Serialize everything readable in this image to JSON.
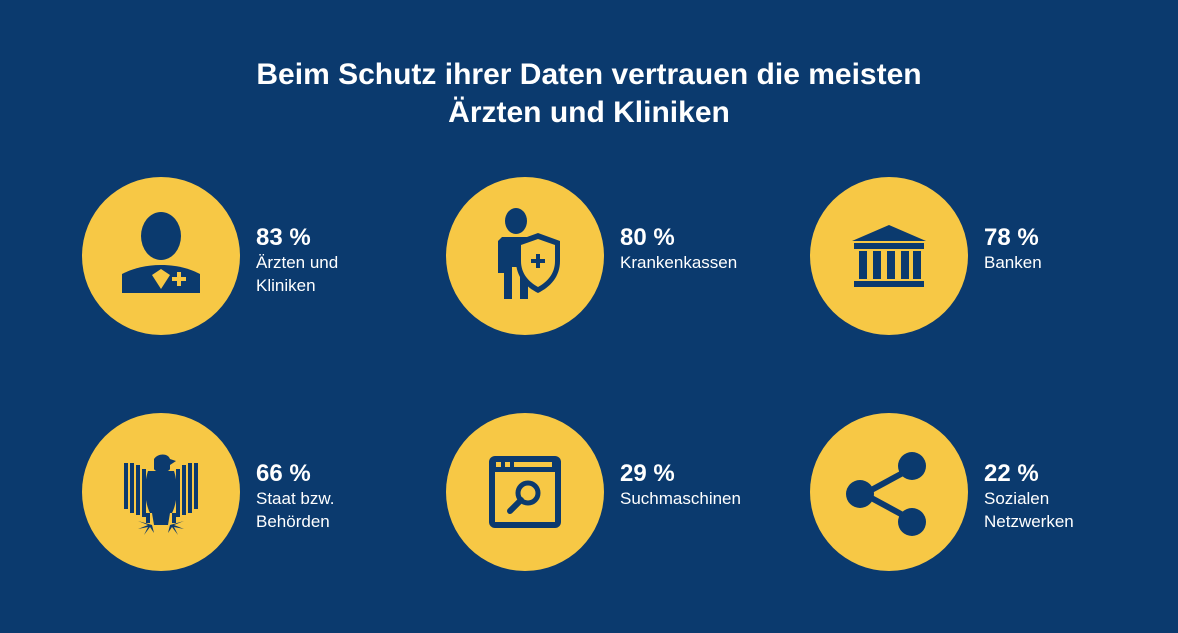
{
  "header": {
    "title_line1": "Beim Schutz ihrer Daten vertrauen die meisten",
    "title_line2": "Ärzten und Kliniken"
  },
  "colors": {
    "background": "#0b3a6e",
    "circle": "#f7c845",
    "icon": "#0b3a6e",
    "text": "#ffffff"
  },
  "chart_data": {
    "type": "table",
    "title": "Beim Schutz ihrer Daten vertrauen die meisten Ärzten und Kliniken",
    "unit": "%",
    "items": [
      {
        "value_label": "83 %",
        "value": 83,
        "category": "Ärzten und Kliniken",
        "icon": "doctor-icon"
      },
      {
        "value_label": "80 %",
        "value": 80,
        "category": "Krankenkassen",
        "icon": "insured-person-shield-icon"
      },
      {
        "value_label": "78 %",
        "value": 78,
        "category": "Banken",
        "icon": "bank-building-icon"
      },
      {
        "value_label": "66 %",
        "value": 66,
        "category": "Staat bzw. Behörden",
        "icon": "federal-eagle-icon"
      },
      {
        "value_label": "29 %",
        "value": 29,
        "category": "Suchmaschinen",
        "icon": "browser-search-icon"
      },
      {
        "value_label": "22 %",
        "value": 22,
        "category": "Sozialen Netzwerken",
        "icon": "share-network-icon"
      }
    ]
  }
}
